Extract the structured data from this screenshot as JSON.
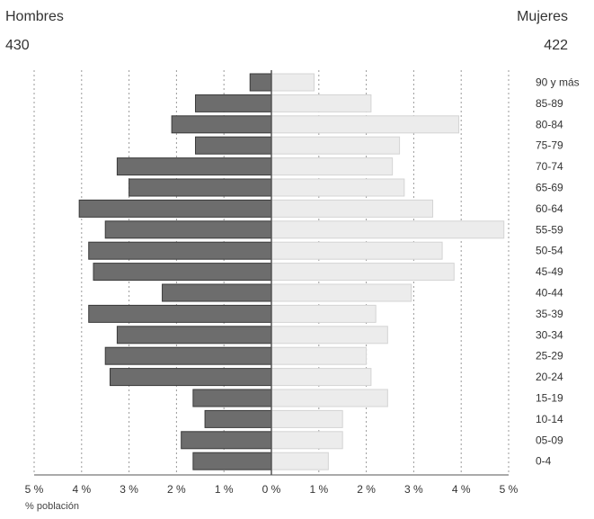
{
  "header": {
    "left_label": "Hombres",
    "left_total": "430",
    "right_label": "Mujeres",
    "right_total": "422"
  },
  "colors": {
    "male_bar": "#6d6d6d",
    "male_edge": "#3a3a3a",
    "female_bar": "#ececec",
    "female_edge": "#d4d4d4",
    "grid": "#9a9a9a"
  },
  "chart_data": {
    "type": "bar",
    "orientation": "horizontal",
    "subtype": "population-pyramid",
    "categories": [
      "90 y más",
      "85-89",
      "80-84",
      "75-79",
      "70-74",
      "65-69",
      "60-64",
      "55-59",
      "50-54",
      "45-49",
      "40-44",
      "35-39",
      "30-34",
      "25-29",
      "20-24",
      "15-19",
      "10-14",
      "05-09",
      "0-4"
    ],
    "series": [
      {
        "name": "Hombres",
        "side": "left",
        "values": [
          0.45,
          1.6,
          2.1,
          1.6,
          3.25,
          3.0,
          4.05,
          3.5,
          3.85,
          3.75,
          2.3,
          3.85,
          3.25,
          3.5,
          3.4,
          1.65,
          1.4,
          1.9,
          1.65
        ]
      },
      {
        "name": "Mujeres",
        "side": "right",
        "values": [
          0.9,
          2.1,
          3.95,
          2.7,
          2.55,
          2.8,
          3.4,
          4.9,
          3.6,
          3.85,
          2.95,
          2.2,
          2.45,
          2.0,
          2.1,
          2.45,
          1.5,
          1.5,
          1.2
        ]
      }
    ],
    "xlabel": "% población",
    "x_ticks": [
      "5 %",
      "4 %",
      "3 %",
      "2 %",
      "1 %",
      "0 %",
      "1 %",
      "2 %",
      "3 %",
      "4 %",
      "5 %"
    ],
    "xlim": [
      -5,
      5
    ],
    "grid": true
  }
}
